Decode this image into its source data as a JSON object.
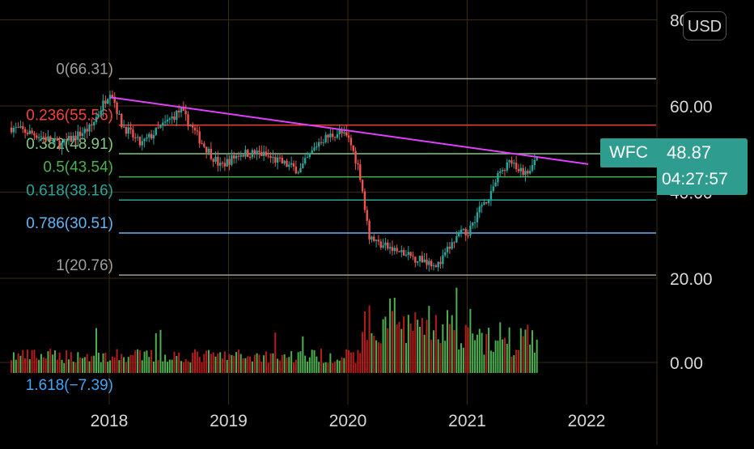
{
  "currency_button": "USD",
  "ticker": {
    "symbol": "WFC",
    "price": "48.87",
    "countdown": "04:27:57",
    "color": "#2e9c8f"
  },
  "price_axis": {
    "labels": [
      {
        "value": 80,
        "text": "80.00"
      },
      {
        "value": 60,
        "text": "60.00"
      },
      {
        "value": 40,
        "text": "40.00"
      },
      {
        "value": 20,
        "text": "20.00"
      }
    ]
  },
  "volume_axis": {
    "labels": [
      {
        "value": 0,
        "text": "0.00"
      }
    ]
  },
  "time_axis": {
    "labels": [
      "2018",
      "2019",
      "2020",
      "2021",
      "2022"
    ]
  },
  "colors": {
    "up": "#26a69a",
    "down": "#ef5350",
    "volume_up": "#4caf50",
    "volume_down": "#b71c1c",
    "trendline": "#e040fb",
    "grid": "#3a2a10"
  },
  "chart_data": {
    "type": "candlestick",
    "symbol": "WFC",
    "x_range": [
      "2017-03",
      "2022-06"
    ],
    "y_range": [
      18.5,
      82
    ],
    "fibonacci": [
      {
        "level": "0",
        "price": 66.31,
        "label": "0(66.31)",
        "color": "#9e9e9e"
      },
      {
        "level": "0.236",
        "price": 55.56,
        "label": "0.236(55.56)",
        "color": "#f44336"
      },
      {
        "level": "0.382",
        "price": 48.91,
        "label": "0.382(48.91)",
        "color": "#81c784"
      },
      {
        "level": "0.5",
        "price": 43.54,
        "label": "0.5(43.54)",
        "color": "#4caf50"
      },
      {
        "level": "0.618",
        "price": 38.16,
        "label": "0.618(38.16)",
        "color": "#26a69a"
      },
      {
        "level": "0.786",
        "price": 30.51,
        "label": "0.786(30.51)",
        "color": "#64b5f6"
      },
      {
        "level": "1",
        "price": 20.76,
        "label": "1(20.76)",
        "color": "#9e9e9e"
      },
      {
        "level": "1.618",
        "price": -7.39,
        "label": "1.618(−7.39)",
        "color": "#42a5f5"
      }
    ],
    "trendline": [
      {
        "date": "2018-01",
        "price": 62
      },
      {
        "date": "2022-01",
        "price": 46.5
      }
    ],
    "price_path": [
      {
        "date": "2017-03",
        "price": 55
      },
      {
        "date": "2017-06",
        "price": 53
      },
      {
        "date": "2017-08",
        "price": 51
      },
      {
        "date": "2017-11",
        "price": 55
      },
      {
        "date": "2018-01",
        "price": 64
      },
      {
        "date": "2018-02",
        "price": 56
      },
      {
        "date": "2018-04",
        "price": 51
      },
      {
        "date": "2018-06",
        "price": 55
      },
      {
        "date": "2018-08",
        "price": 59
      },
      {
        "date": "2018-10",
        "price": 52
      },
      {
        "date": "2018-12",
        "price": 46
      },
      {
        "date": "2019-02",
        "price": 49
      },
      {
        "date": "2019-04",
        "price": 49
      },
      {
        "date": "2019-06",
        "price": 47
      },
      {
        "date": "2019-08",
        "price": 45
      },
      {
        "date": "2019-10",
        "price": 52
      },
      {
        "date": "2019-12",
        "price": 54
      },
      {
        "date": "2020-01",
        "price": 52
      },
      {
        "date": "2020-02",
        "price": 45
      },
      {
        "date": "2020-03",
        "price": 30
      },
      {
        "date": "2020-04",
        "price": 28
      },
      {
        "date": "2020-05",
        "price": 27
      },
      {
        "date": "2020-06",
        "price": 26
      },
      {
        "date": "2020-07",
        "price": 25
      },
      {
        "date": "2020-09",
        "price": 24
      },
      {
        "date": "2020-10",
        "price": 23
      },
      {
        "date": "2020-11",
        "price": 27
      },
      {
        "date": "2020-12",
        "price": 30
      },
      {
        "date": "2021-01",
        "price": 31
      },
      {
        "date": "2021-02",
        "price": 36
      },
      {
        "date": "2021-03",
        "price": 39
      },
      {
        "date": "2021-04",
        "price": 44
      },
      {
        "date": "2021-05",
        "price": 47
      },
      {
        "date": "2021-06",
        "price": 45
      },
      {
        "date": "2021-07",
        "price": 44
      },
      {
        "date": "2021-08",
        "price": 48.87
      }
    ]
  }
}
